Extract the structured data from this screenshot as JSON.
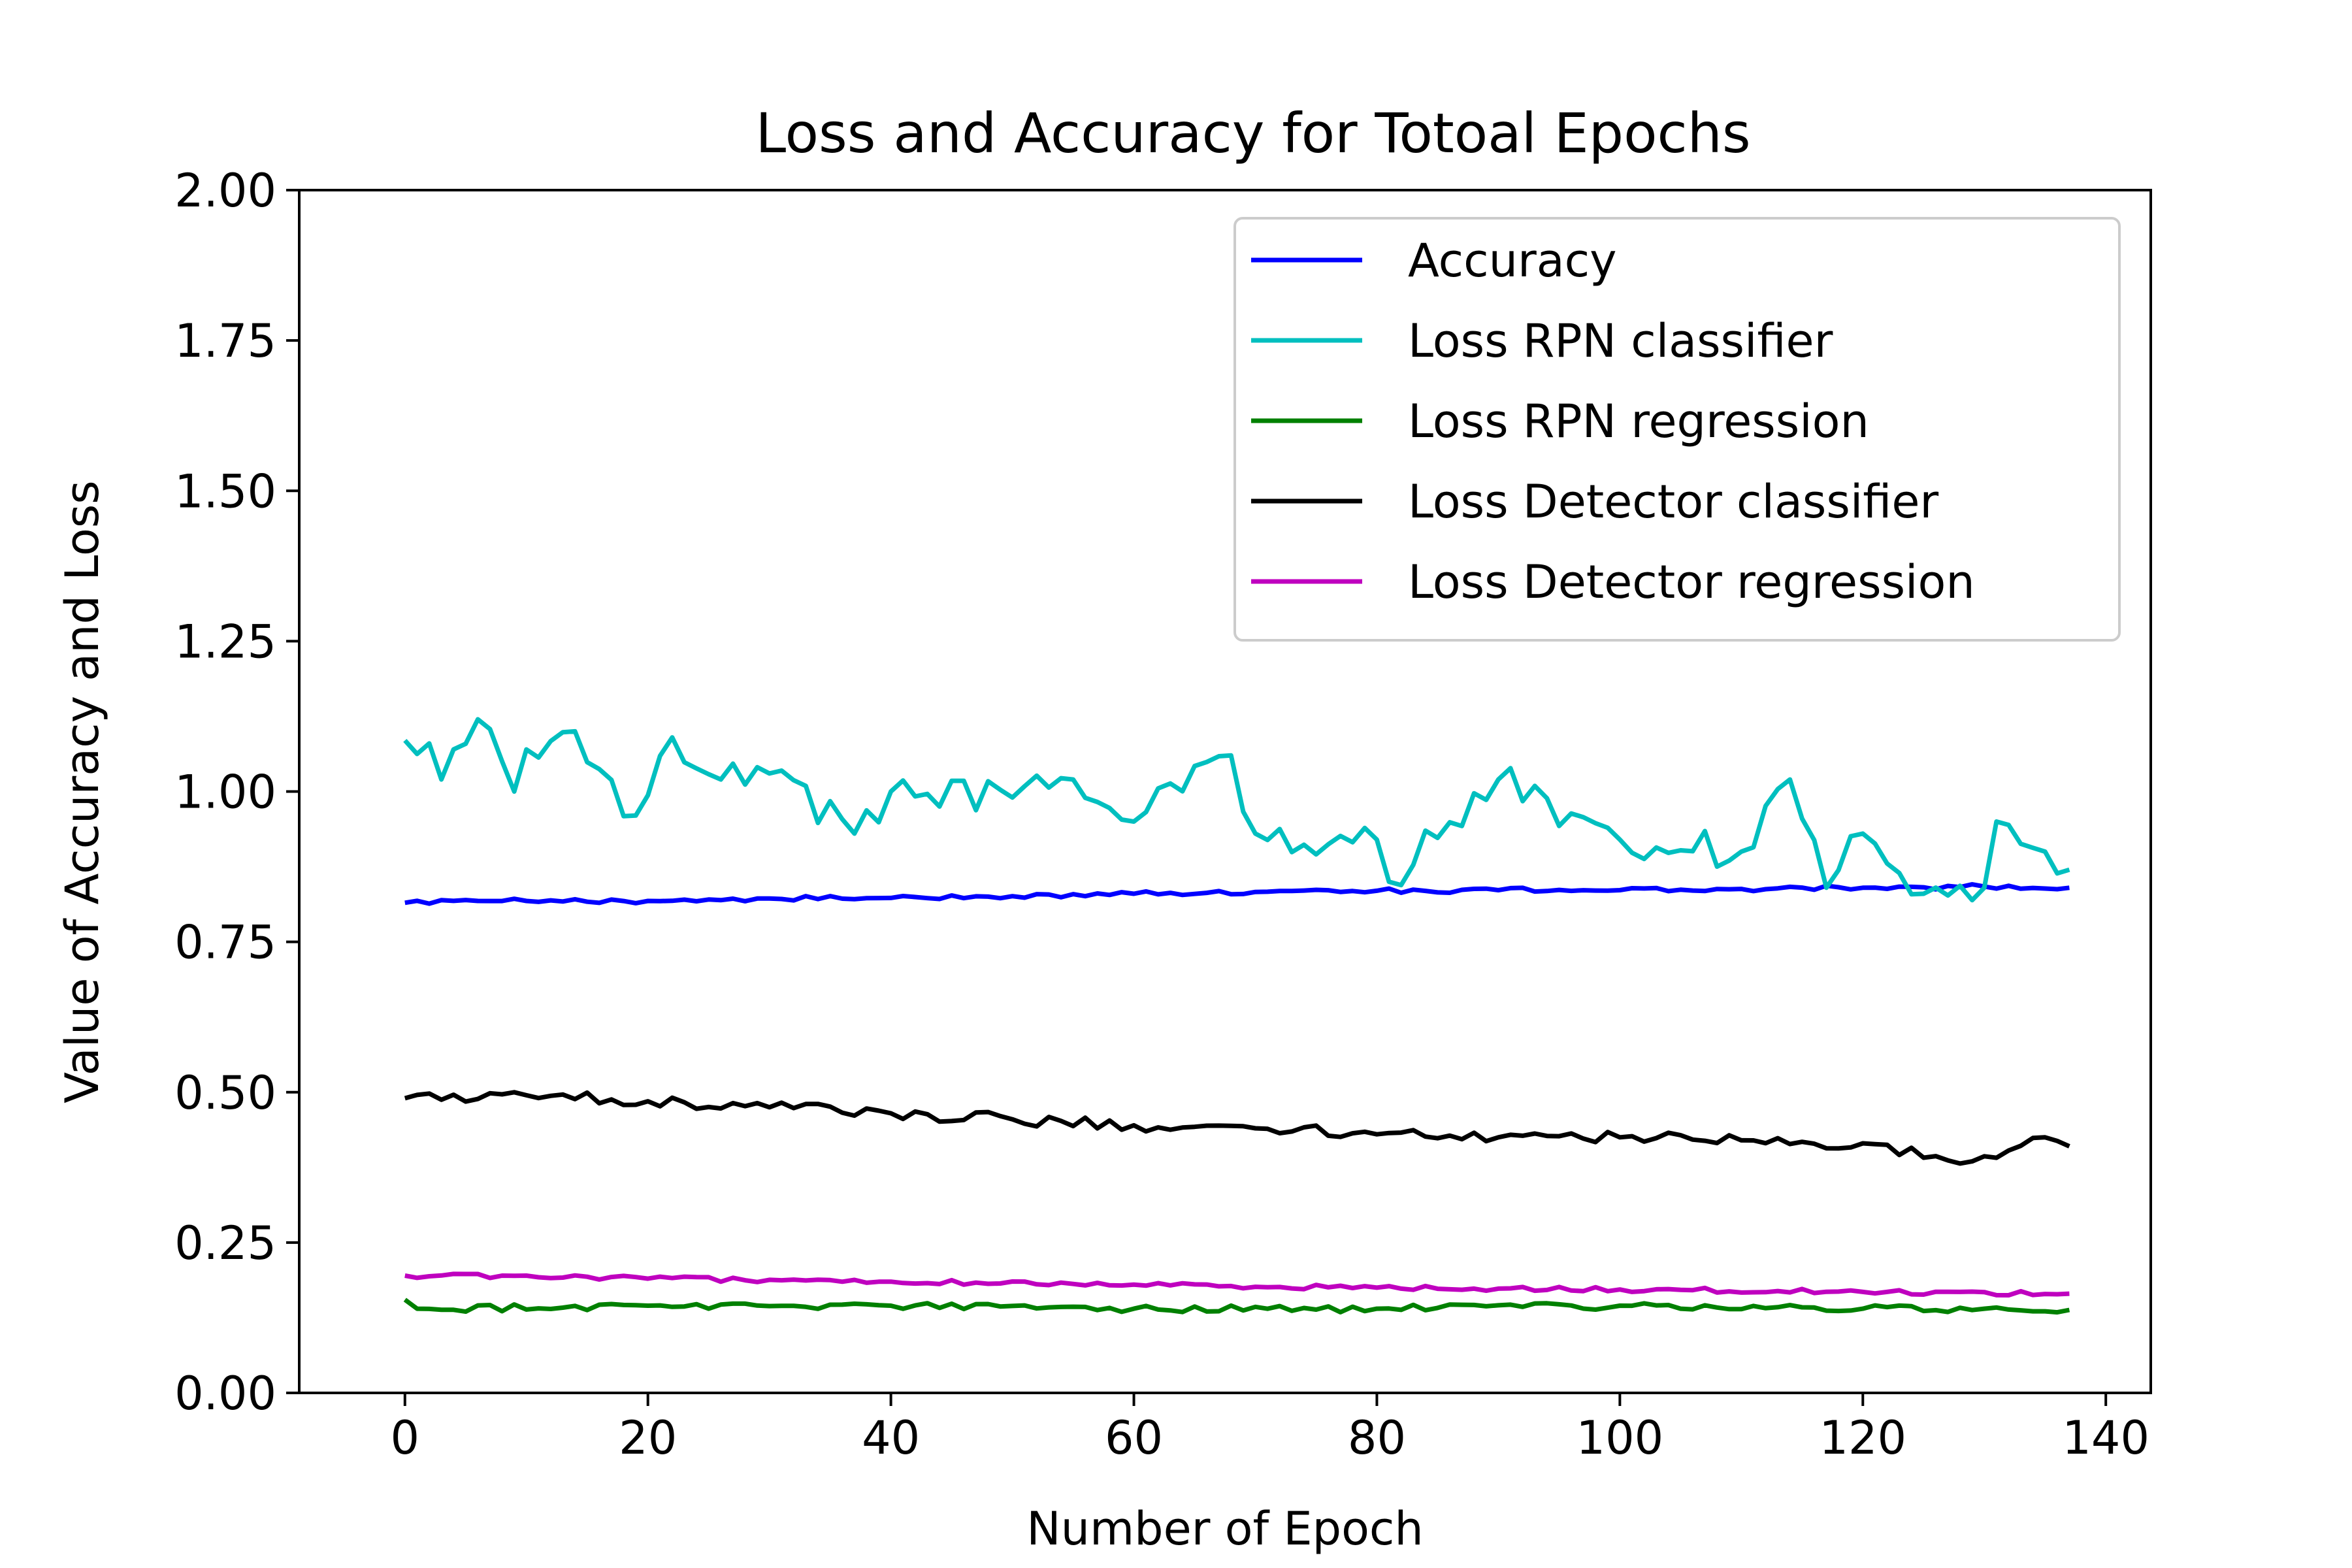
{
  "chart_data": {
    "type": "line",
    "title": "Loss and Accuracy for Totoal Epochs",
    "xlabel": "Number of Epoch",
    "ylabel": "Value of Accuracy and Loss",
    "xlim": [
      -8.7,
      143.7
    ],
    "ylim": [
      0.0,
      2.0
    ],
    "xticks": [
      0,
      20,
      40,
      60,
      80,
      100,
      120,
      140
    ],
    "xtick_labels": [
      "0",
      "20",
      "40",
      "60",
      "80",
      "100",
      "120",
      "140"
    ],
    "yticks": [
      0.0,
      0.25,
      0.5,
      0.75,
      1.0,
      1.25,
      1.5,
      1.75,
      2.0
    ],
    "ytick_labels": [
      "0.00",
      "0.25",
      "0.50",
      "0.75",
      "1.00",
      "1.25",
      "1.50",
      "1.75",
      "2.00"
    ],
    "grid": false,
    "legend_position": "top-right",
    "x_start": 0,
    "x_end": 137,
    "series": [
      {
        "name": "Accuracy",
        "color": "#0000ff",
        "keypoints": [
          [
            0,
            0.815
          ],
          [
            10,
            0.818
          ],
          [
            20,
            0.818
          ],
          [
            30,
            0.822
          ],
          [
            40,
            0.823
          ],
          [
            50,
            0.826
          ],
          [
            60,
            0.83
          ],
          [
            70,
            0.833
          ],
          [
            80,
            0.835
          ],
          [
            90,
            0.836
          ],
          [
            100,
            0.836
          ],
          [
            110,
            0.838
          ],
          [
            120,
            0.84
          ],
          [
            130,
            0.842
          ],
          [
            137,
            0.84
          ]
        ],
        "jitter": 0.004
      },
      {
        "name": "Loss RPN classifier",
        "color": "#00bfbf",
        "keypoints": [
          [
            0,
            1.085
          ],
          [
            2,
            1.08
          ],
          [
            3,
            1.02
          ],
          [
            6,
            1.12
          ],
          [
            9,
            1.0
          ],
          [
            10,
            1.07
          ],
          [
            14,
            1.1
          ],
          [
            19,
            0.96
          ],
          [
            22,
            1.09
          ],
          [
            26,
            1.02
          ],
          [
            30,
            1.03
          ],
          [
            37,
            0.93
          ],
          [
            40,
            1.0
          ],
          [
            50,
            0.99
          ],
          [
            55,
            1.02
          ],
          [
            60,
            0.95
          ],
          [
            68,
            1.06
          ],
          [
            70,
            0.93
          ],
          [
            80,
            0.92
          ],
          [
            81,
            0.85
          ],
          [
            90,
            1.02
          ],
          [
            100,
            0.92
          ],
          [
            110,
            0.9
          ],
          [
            114,
            1.02
          ],
          [
            117,
            0.84
          ],
          [
            120,
            0.93
          ],
          [
            125,
            0.83
          ],
          [
            130,
            0.84
          ],
          [
            131,
            0.95
          ],
          [
            135,
            0.9
          ],
          [
            137,
            0.87
          ]
        ],
        "jitter": 0.03
      },
      {
        "name": "Loss RPN regression",
        "color": "#008000",
        "keypoints": [
          [
            0,
            0.155
          ],
          [
            1,
            0.14
          ],
          [
            20,
            0.145
          ],
          [
            40,
            0.145
          ],
          [
            60,
            0.14
          ],
          [
            80,
            0.14
          ],
          [
            100,
            0.145
          ],
          [
            120,
            0.14
          ],
          [
            130,
            0.14
          ],
          [
            137,
            0.138
          ]
        ],
        "jitter": 0.006
      },
      {
        "name": "Loss Detector classifier",
        "color": "#000000",
        "keypoints": [
          [
            0,
            0.49
          ],
          [
            10,
            0.495
          ],
          [
            20,
            0.485
          ],
          [
            30,
            0.475
          ],
          [
            40,
            0.465
          ],
          [
            50,
            0.455
          ],
          [
            60,
            0.445
          ],
          [
            70,
            0.44
          ],
          [
            80,
            0.43
          ],
          [
            90,
            0.425
          ],
          [
            100,
            0.425
          ],
          [
            110,
            0.42
          ],
          [
            120,
            0.415
          ],
          [
            129,
            0.385
          ],
          [
            135,
            0.425
          ],
          [
            137,
            0.41
          ]
        ],
        "jitter": 0.01
      },
      {
        "name": "Loss Detector regression",
        "color": "#bf00bf",
        "keypoints": [
          [
            0,
            0.195
          ],
          [
            10,
            0.195
          ],
          [
            20,
            0.19
          ],
          [
            40,
            0.185
          ],
          [
            60,
            0.18
          ],
          [
            80,
            0.175
          ],
          [
            100,
            0.172
          ],
          [
            120,
            0.168
          ],
          [
            137,
            0.165
          ]
        ],
        "jitter": 0.004
      }
    ]
  }
}
